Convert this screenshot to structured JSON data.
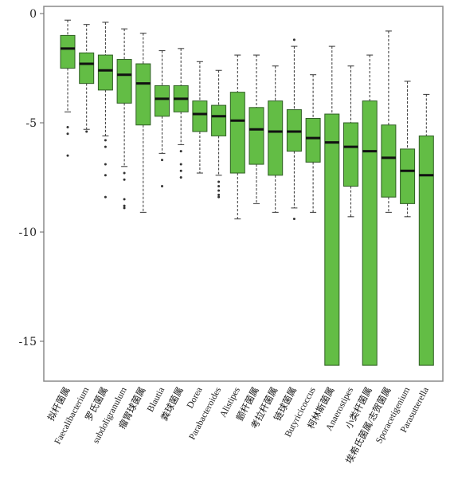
{
  "chart_data": {
    "type": "box",
    "title": "",
    "xlabel": "",
    "ylabel": "",
    "ylim": [
      -16.5,
      0.2
    ],
    "yticks": [
      0,
      -5,
      -10,
      -15
    ],
    "grid": false,
    "legend": "none",
    "colors": {
      "box_fill": "#63bd45",
      "box_stroke": "#2f5e23",
      "median": "#111111",
      "whisker": "#333333",
      "frame": "#8a8a8a"
    },
    "categories": [
      "拟杆菌属",
      "Faecalibacterium",
      "罗氏菌属",
      "subdoligranulum",
      "瘤胃球菌属",
      "Blautia",
      "粪球菌属",
      "Dorea",
      "Parabacteroides",
      "Alistipes",
      "颤杆菌属",
      "考拉杆菌属",
      "链球菌属",
      "Butyricicoccus",
      "柯林斯菌属",
      "Anaerostipes",
      "小类杆菌属",
      "埃希氏菌属/志贺菌属",
      "Sporacetigenium",
      "Parasutterella"
    ],
    "series": [
      {
        "category": "拟杆菌属",
        "whisker_low": -4.5,
        "q1": -2.5,
        "median": -1.6,
        "q3": -1.0,
        "whisker_high": -0.3,
        "outliers": [
          -5.2,
          -5.5,
          -6.5
        ]
      },
      {
        "category": "Faecalibacterium",
        "whisker_low": -5.3,
        "q1": -3.2,
        "median": -2.3,
        "q3": -1.8,
        "whisker_high": -0.5,
        "outliers": [
          -5.4
        ]
      },
      {
        "category": "罗氏菌属",
        "whisker_low": -5.6,
        "q1": -3.5,
        "median": -2.6,
        "q3": -1.9,
        "whisker_high": -0.4,
        "outliers": [
          -5.8,
          -6.1,
          -6.9,
          -7.4,
          -8.4
        ]
      },
      {
        "category": "subdoligranulum",
        "whisker_low": -7.0,
        "q1": -4.1,
        "median": -2.8,
        "q3": -2.1,
        "whisker_high": -0.7,
        "outliers": [
          -7.3,
          -7.6,
          -8.5,
          -8.8,
          -8.9
        ]
      },
      {
        "category": "瘤胃球菌属",
        "whisker_low": -9.1,
        "q1": -5.1,
        "median": -3.2,
        "q3": -2.3,
        "whisker_high": -0.9,
        "outliers": []
      },
      {
        "category": "Blautia",
        "whisker_low": -6.4,
        "q1": -4.7,
        "median": -3.9,
        "q3": -3.3,
        "whisker_high": -1.7,
        "outliers": [
          -6.7,
          -7.9
        ]
      },
      {
        "category": "粪球菌属",
        "whisker_low": -6.0,
        "q1": -4.5,
        "median": -3.9,
        "q3": -3.3,
        "whisker_high": -1.6,
        "outliers": [
          -6.3,
          -6.9,
          -7.2,
          -7.5
        ]
      },
      {
        "category": "Dorea",
        "whisker_low": -7.3,
        "q1": -5.4,
        "median": -4.6,
        "q3": -4.0,
        "whisker_high": -2.2,
        "outliers": []
      },
      {
        "category": "Parabacteroides",
        "whisker_low": -7.4,
        "q1": -5.6,
        "median": -4.7,
        "q3": -4.2,
        "whisker_high": -2.6,
        "outliers": [
          -7.7,
          -7.9,
          -8.1,
          -8.3,
          -8.4
        ]
      },
      {
        "category": "Alistipes",
        "whisker_low": -9.4,
        "q1": -7.3,
        "median": -4.9,
        "q3": -3.6,
        "whisker_high": -1.9,
        "outliers": []
      },
      {
        "category": "颤杆菌属",
        "whisker_low": -8.7,
        "q1": -6.9,
        "median": -5.3,
        "q3": -4.3,
        "whisker_high": -1.9,
        "outliers": []
      },
      {
        "category": "考拉杆菌属",
        "whisker_low": -9.1,
        "q1": -7.4,
        "median": -5.4,
        "q3": -4.0,
        "whisker_high": -2.4,
        "outliers": []
      },
      {
        "category": "链球菌属",
        "whisker_low": -8.9,
        "q1": -6.3,
        "median": -5.4,
        "q3": -4.4,
        "whisker_high": -1.5,
        "outliers": [
          -1.2,
          -9.4
        ]
      },
      {
        "category": "Butyricicoccus",
        "whisker_low": -9.1,
        "q1": -6.8,
        "median": -5.7,
        "q3": -4.8,
        "whisker_high": -2.8,
        "outliers": []
      },
      {
        "category": "柯林斯菌属",
        "whisker_low": -16.1,
        "q1": -16.1,
        "median": -5.9,
        "q3": -4.6,
        "whisker_high": -1.5,
        "outliers": []
      },
      {
        "category": "Anaerostipes",
        "whisker_low": -9.3,
        "q1": -7.9,
        "median": -6.1,
        "q3": -5.0,
        "whisker_high": -2.4,
        "outliers": []
      },
      {
        "category": "小类杆菌属",
        "whisker_low": -16.1,
        "q1": -16.1,
        "median": -6.3,
        "q3": -4.0,
        "whisker_high": -1.9,
        "outliers": []
      },
      {
        "category": "埃希氏菌属/志贺菌属",
        "whisker_low": -9.1,
        "q1": -8.4,
        "median": -6.6,
        "q3": -5.1,
        "whisker_high": -0.8,
        "outliers": []
      },
      {
        "category": "Sporacetigenium",
        "whisker_low": -9.3,
        "q1": -8.7,
        "median": -7.2,
        "q3": -6.2,
        "whisker_high": -3.1,
        "outliers": []
      },
      {
        "category": "Parasutterella",
        "whisker_low": -16.1,
        "q1": -16.1,
        "median": -7.4,
        "q3": -5.6,
        "whisker_high": -3.7,
        "outliers": []
      }
    ]
  }
}
